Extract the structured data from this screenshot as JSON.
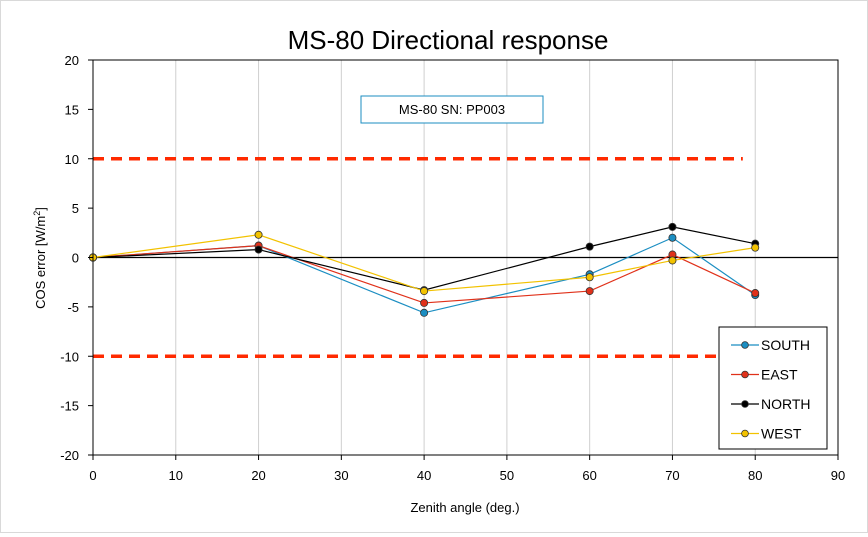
{
  "chart_data": {
    "type": "line",
    "title": "MS-80 Directional response",
    "annotation": "MS-80 SN: PP003",
    "xlabel": "Zenith angle (deg.)",
    "ylabel_main": "COS error [W/m",
    "ylabel_sup": "2",
    "ylabel_end": "]",
    "xlim": [
      0,
      90
    ],
    "ylim": [
      -20,
      20
    ],
    "x_ticks": [
      0,
      10,
      20,
      30,
      40,
      50,
      60,
      70,
      80,
      90
    ],
    "y_ticks": [
      20,
      15,
      10,
      5,
      0,
      -5,
      -10,
      -15,
      -20
    ],
    "grid": "vertical",
    "legend_position": "bottom-right",
    "limit_lines": [
      {
        "y": 10,
        "x_range": [
          0,
          78.5
        ],
        "color": "#ff2a00",
        "style": "dashed"
      },
      {
        "y": -10,
        "x_range": [
          0,
          78.5
        ],
        "color": "#ff2a00",
        "style": "dashed"
      }
    ],
    "x": [
      0,
      20,
      40,
      60,
      70,
      80
    ],
    "series": [
      {
        "name": "SOUTH",
        "color": "#1b8ec2",
        "values": [
          0,
          1.2,
          -5.6,
          -1.7,
          2.0,
          -3.8
        ]
      },
      {
        "name": "EAST",
        "color": "#e0311a",
        "values": [
          0,
          1.2,
          -4.6,
          -3.4,
          0.3,
          -3.6
        ]
      },
      {
        "name": "NORTH",
        "color": "#000000",
        "values": [
          0,
          0.8,
          -3.3,
          1.1,
          3.1,
          1.4
        ]
      },
      {
        "name": "WEST",
        "color": "#f2c200",
        "values": [
          0,
          2.3,
          -3.4,
          -2.0,
          -0.3,
          1.0
        ]
      }
    ]
  }
}
